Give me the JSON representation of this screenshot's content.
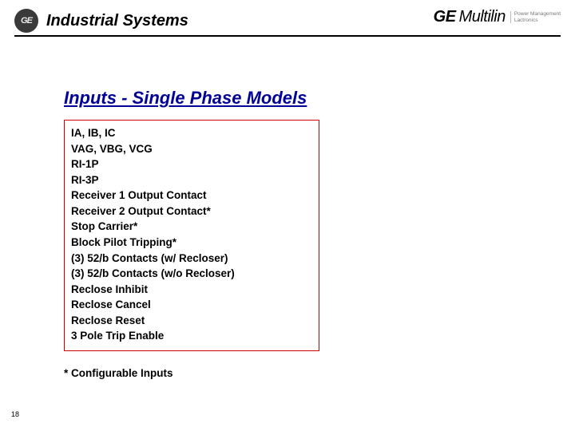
{
  "header": {
    "logo_text": "GE",
    "title": "Industrial Systems",
    "brand_left": "GE",
    "brand_right": "Multilin",
    "tagline_line1": "Power Management",
    "tagline_line2": "Lactronics"
  },
  "slide": {
    "title": "Inputs - Single Phase Models",
    "title_color": "#000099",
    "box_border_color": "#cc0000"
  },
  "inputs": {
    "items": [
      "IA, IB, IC",
      "VAG, VBG, VCG",
      "RI-1P",
      "RI-3P",
      "Receiver 1 Output Contact",
      "Receiver 2 Output Contact*",
      "Stop Carrier*",
      "Block Pilot Tripping*",
      "(3) 52/b Contacts (w/ Recloser)",
      "(3) 52/b Contacts (w/o Recloser)",
      "Reclose Inhibit",
      "Reclose Cancel",
      "Reclose Reset",
      "3 Pole Trip Enable"
    ]
  },
  "footnote": "* Configurable Inputs",
  "page_number": "18"
}
